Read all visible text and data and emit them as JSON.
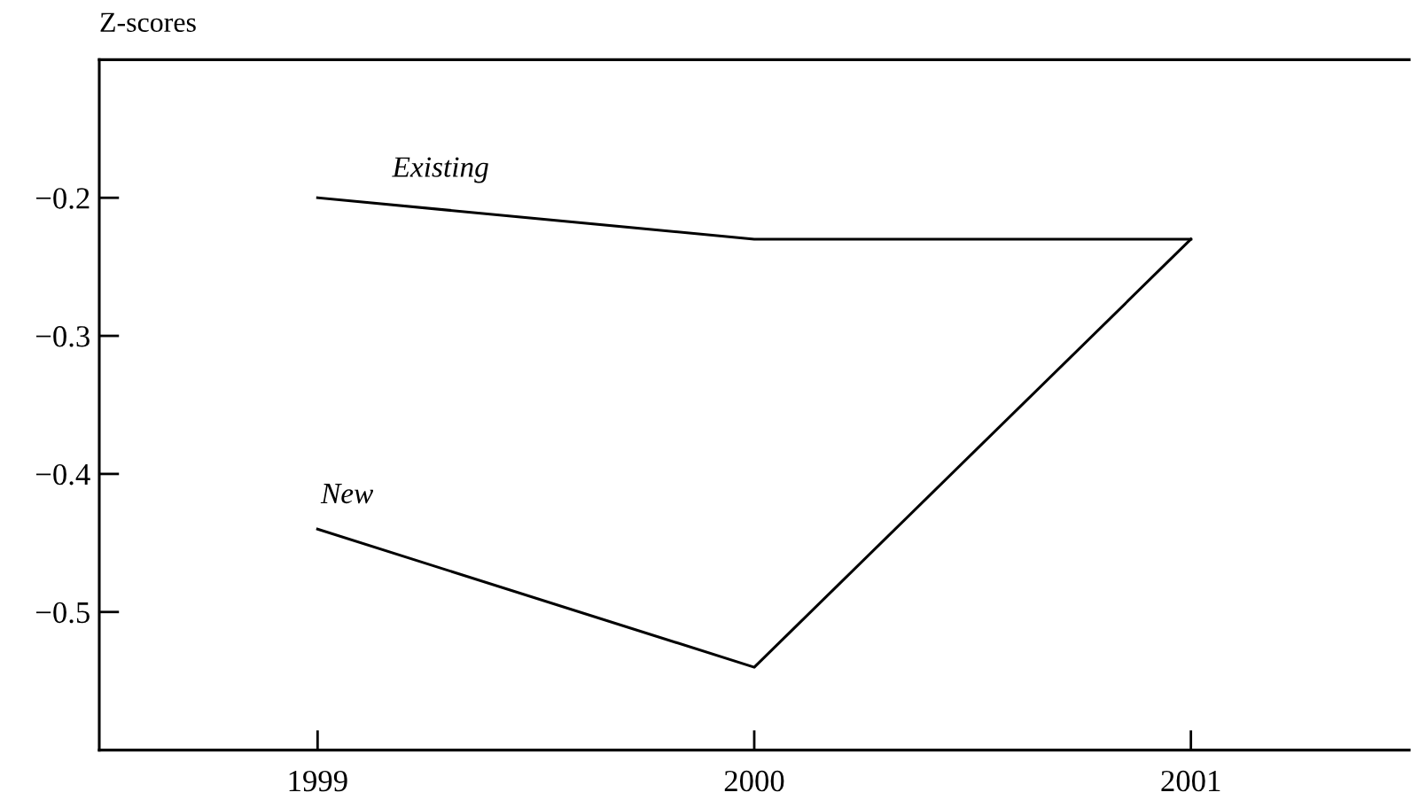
{
  "chart_data": {
    "type": "line",
    "ylabel": "Z-scores",
    "x": [
      1999,
      2000,
      2001
    ],
    "series": [
      {
        "name": "Existing",
        "color": "#000000",
        "values": [
          -0.2,
          -0.23,
          -0.23
        ]
      },
      {
        "name": "New",
        "color": "#000000",
        "values": [
          -0.44,
          -0.54,
          -0.23
        ]
      }
    ],
    "xlim": [
      1998.5,
      2001.5
    ],
    "ylim": [
      -0.6,
      -0.1
    ],
    "xticks": [
      1999,
      2000,
      2001
    ],
    "yticks": [
      {
        "value": -0.2,
        "label": "−0.2"
      },
      {
        "value": -0.3,
        "label": "−0.3"
      },
      {
        "value": -0.4,
        "label": "−0.4"
      },
      {
        "value": -0.5,
        "label": "−0.5"
      }
    ],
    "grid": false,
    "legend": false,
    "marker": "none",
    "line_style": "solid"
  }
}
